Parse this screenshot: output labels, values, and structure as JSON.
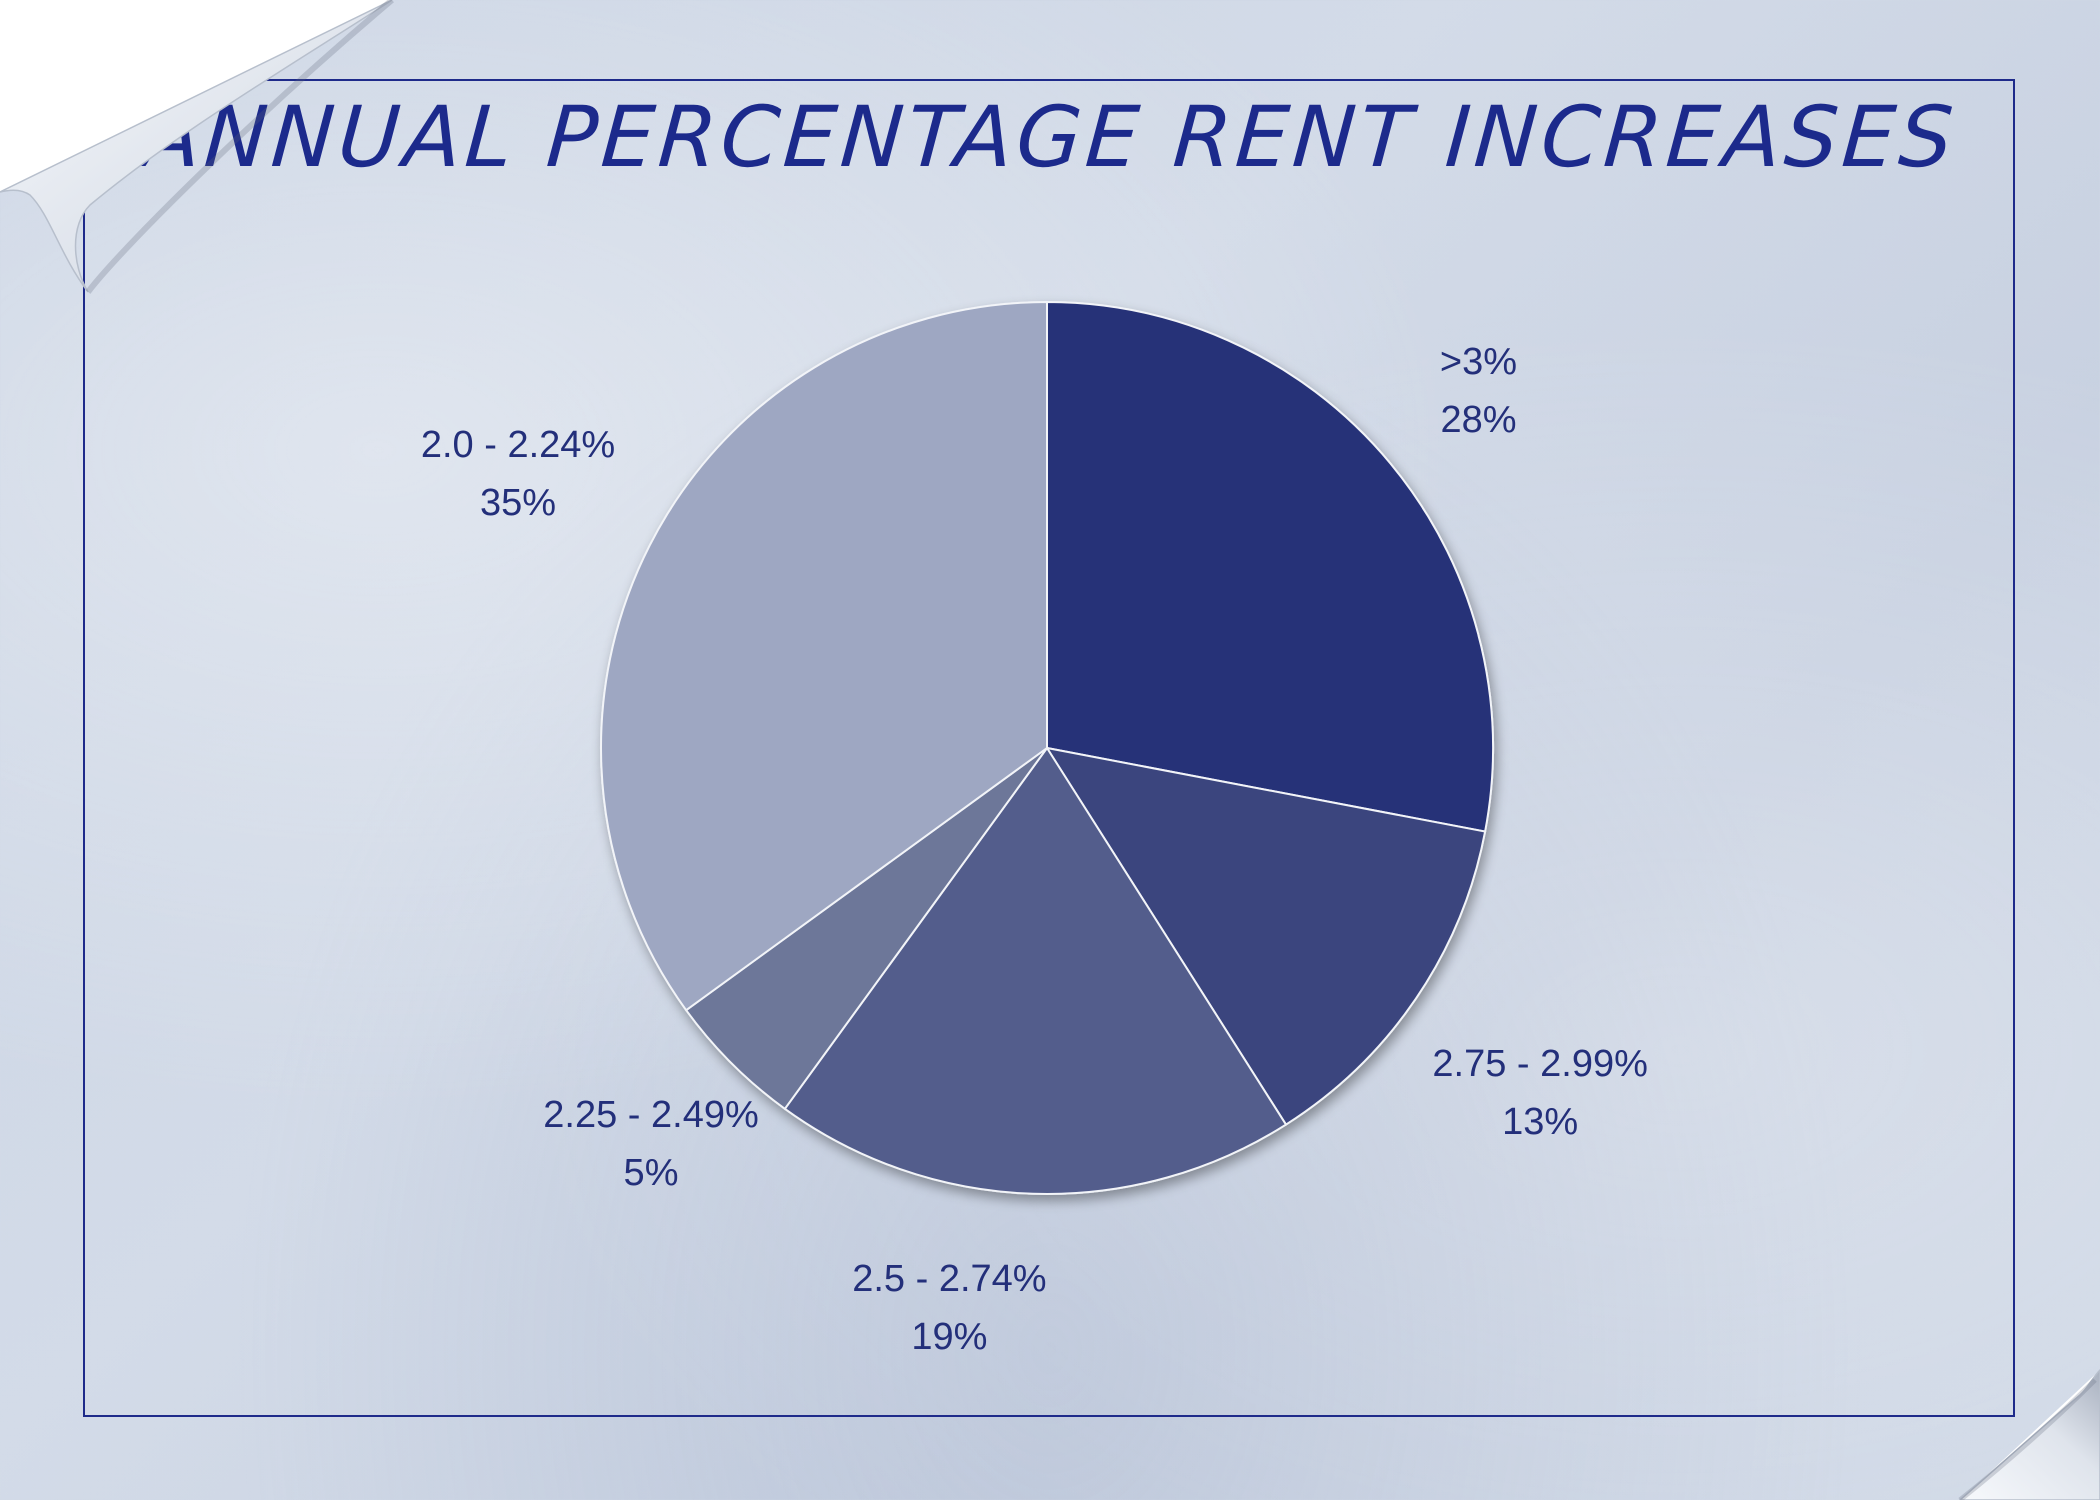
{
  "page": {
    "background_color": "#cdd6e5",
    "frame_color": "#1e2a8a",
    "decorations": [
      "page-curl-top-left",
      "page-curl-bottom-right"
    ]
  },
  "chart_data": {
    "type": "pie",
    "title": "ANNUAL PERCENTAGE RENT INCREASES",
    "start_angle_deg": 0,
    "direction": "clockwise",
    "slices": [
      {
        "label": ">3%",
        "value": 28,
        "value_label": "28%",
        "color": "#253178"
      },
      {
        "label": "2.75 - 2.99%",
        "value": 13,
        "value_label": "13%",
        "color": "#3a457e"
      },
      {
        "label": "2.5 - 2.74%",
        "value": 19,
        "value_label": "19%",
        "color": "#535d8c"
      },
      {
        "label": "2.25 - 2.49%",
        "value": 5,
        "value_label": "5%",
        "color": "#6d7799"
      },
      {
        "label": "2.0 - 2.24%",
        "value": 35,
        "value_label": "35%",
        "color": "#9ea7c2"
      }
    ]
  }
}
